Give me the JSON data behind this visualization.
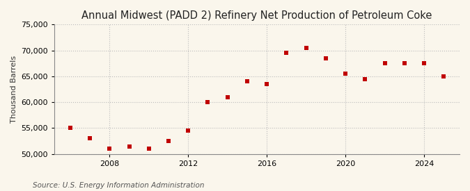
{
  "title": "Annual Midwest (PADD 2) Refinery Net Production of Petroleum Coke",
  "ylabel": "Thousand Barrels",
  "source": "Source: U.S. Energy Information Administration",
  "years": [
    2006,
    2007,
    2008,
    2009,
    2010,
    2011,
    2012,
    2013,
    2014,
    2015,
    2016,
    2017,
    2018,
    2019,
    2020,
    2021,
    2022,
    2023,
    2024,
    2025
  ],
  "values": [
    55000,
    53000,
    51000,
    51500,
    51000,
    52500,
    54500,
    60000,
    61000,
    64000,
    63500,
    69500,
    70500,
    68500,
    65500,
    64500,
    67500,
    67500,
    67500,
    65000
  ],
  "marker_color": "#C00000",
  "bg_color": "#FAF6EC",
  "plot_bg_color": "#FAF6EC",
  "grid_color": "#BBBBBB",
  "ylim": [
    50000,
    75000
  ],
  "yticks": [
    50000,
    55000,
    60000,
    65000,
    70000,
    75000
  ],
  "xticks": [
    2008,
    2012,
    2016,
    2020,
    2024
  ],
  "xlim": [
    2005.2,
    2025.8
  ],
  "title_fontsize": 10.5,
  "ylabel_fontsize": 8,
  "tick_labelsize": 8,
  "source_fontsize": 7.5
}
